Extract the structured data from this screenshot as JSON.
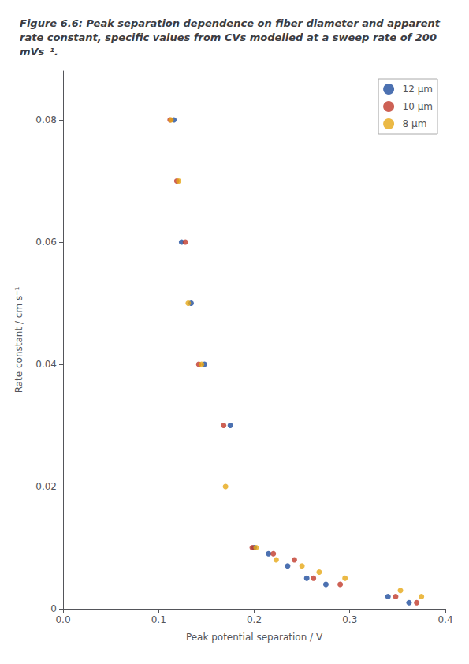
{
  "chart_data": {
    "type": "scatter",
    "title": "Figure 6.6: Peak separation dependence on fiber diameter and apparent rate constant, specific values from CVs modelled at a sweep rate of 200 mVs⁻¹.",
    "xlabel": "Peak potential separation / V",
    "ylabel": "Rate constant / cm s⁻¹",
    "xlim": [
      0,
      0.4
    ],
    "ylim": [
      0,
      0.088
    ],
    "xticks": [
      {
        "value": 0,
        "label": "0.0"
      },
      0.1,
      0.2,
      0.3,
      0.4
    ],
    "yticks": [
      0,
      0.02,
      0.04,
      0.06,
      0.08
    ],
    "grid": false,
    "legend": "upper right",
    "series": [
      {
        "name": "12 μm",
        "color": "#1f4e9e",
        "x": [
          0.116,
          0.124,
          0.134,
          0.148,
          0.175,
          0.2,
          0.215,
          0.235,
          0.255,
          0.275,
          0.34,
          0.362
        ],
        "values": [
          0.08,
          0.06,
          0.05,
          0.04,
          0.03,
          0.01,
          0.009,
          0.007,
          0.005,
          0.004,
          0.002,
          0.001
        ]
      },
      {
        "name": "10 μm",
        "color": "#c0392b",
        "x": [
          0.112,
          0.119,
          0.128,
          0.142,
          0.168,
          0.198,
          0.22,
          0.242,
          0.262,
          0.29,
          0.348,
          0.37
        ],
        "values": [
          0.08,
          0.07,
          0.06,
          0.04,
          0.03,
          0.01,
          0.009,
          0.008,
          0.005,
          0.004,
          0.002,
          0.001
        ]
      },
      {
        "name": "8 μm",
        "color": "#e6a817",
        "x": [
          0.113,
          0.121,
          0.131,
          0.145,
          0.17,
          0.202,
          0.223,
          0.25,
          0.268,
          0.295,
          0.353,
          0.375
        ],
        "values": [
          0.08,
          0.07,
          0.05,
          0.04,
          0.02,
          0.01,
          0.008,
          0.007,
          0.006,
          0.005,
          0.003,
          0.002
        ]
      }
    ]
  }
}
